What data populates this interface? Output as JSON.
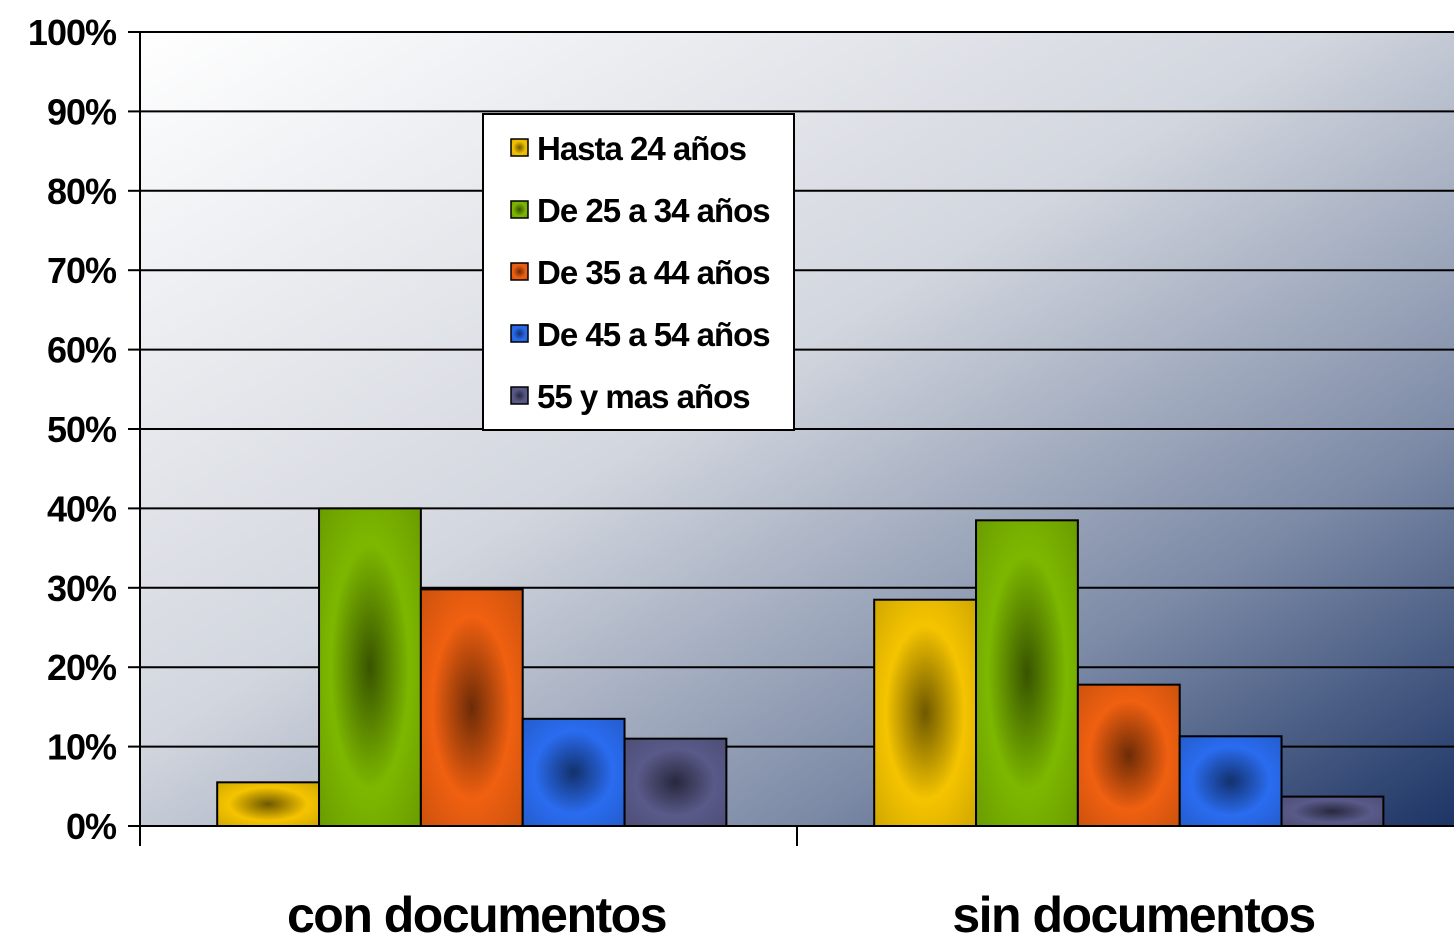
{
  "chart_data": {
    "type": "bar",
    "categories": [
      "con documentos",
      "sin documentos"
    ],
    "series": [
      {
        "name": "Hasta 24 años",
        "values": [
          5.5,
          28.5
        ],
        "color": "#f5c400"
      },
      {
        "name": "De 25 a 34 años",
        "values": [
          40,
          38.5
        ],
        "color": "#7db800"
      },
      {
        "name": "De 35 a 44 años",
        "values": [
          29.8,
          17.8
        ],
        "color": "#f06010"
      },
      {
        "name": "De 45 a 54 años",
        "values": [
          13.5,
          11.3
        ],
        "color": "#2a6cf0"
      },
      {
        "name": "55 y mas años",
        "values": [
          11,
          3.7
        ],
        "color": "#5a5a8a"
      }
    ],
    "y_ticks": [
      "0%",
      "10%",
      "20%",
      "30%",
      "40%",
      "50%",
      "60%",
      "70%",
      "80%",
      "90%",
      "100%"
    ],
    "ylim": [
      0,
      100
    ],
    "grid": true,
    "legend_position": "top-center"
  }
}
